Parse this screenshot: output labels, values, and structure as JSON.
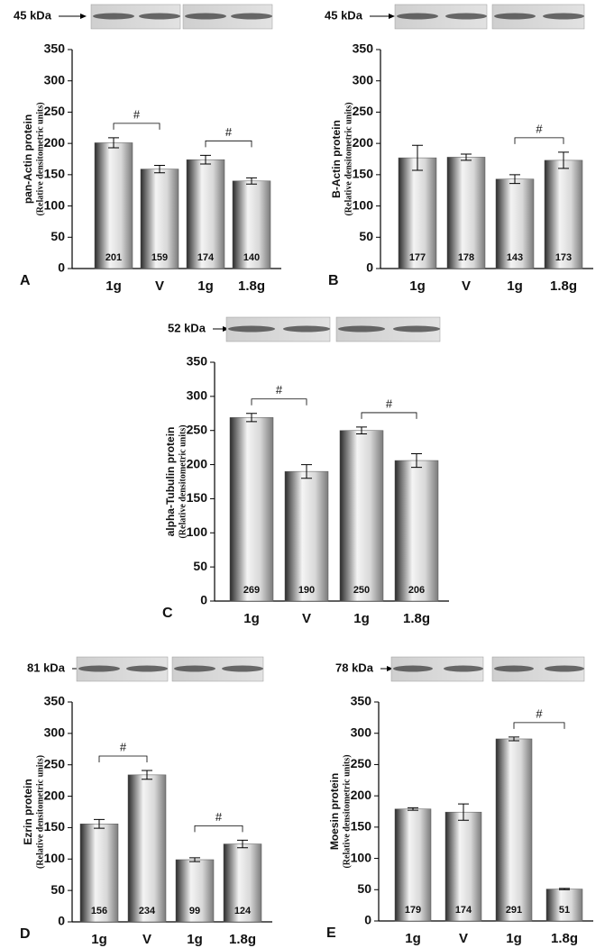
{
  "chart_data": [
    {
      "type": "bar",
      "panel": "A",
      "blot_label": "45 kDa",
      "y_label": "pan-Actin protein",
      "y_sublabel": "(Relative densitometric units)",
      "categories": [
        "1g",
        "V",
        "1g",
        "1.8g"
      ],
      "values": [
        201,
        159,
        174,
        140
      ],
      "errors": [
        8,
        6,
        7,
        5
      ],
      "pair_labels": [
        "#",
        "#"
      ],
      "ylim": [
        0,
        350
      ],
      "yticks": [
        0,
        50,
        100,
        150,
        200,
        250,
        300,
        350
      ]
    },
    {
      "type": "bar",
      "panel": "B",
      "blot_label": "45 kDa",
      "y_label": "B-Actin protein",
      "y_sublabel": "(Relative densitometric units)",
      "categories": [
        "1g",
        "V",
        "1g",
        "1.8g"
      ],
      "values": [
        177,
        178,
        143,
        173
      ],
      "errors": [
        20,
        5,
        7,
        13
      ],
      "pair_labels": [
        null,
        "#"
      ],
      "ylim": [
        0,
        350
      ],
      "yticks": [
        0,
        50,
        100,
        150,
        200,
        250,
        300,
        350
      ]
    },
    {
      "type": "bar",
      "panel": "C",
      "blot_label": "52 kDa",
      "y_label": "alpha-Tubulin protein",
      "y_sublabel": "(Relative densitometric units)",
      "categories": [
        "1g",
        "V",
        "1g",
        "1.8g"
      ],
      "values": [
        269,
        190,
        250,
        206
      ],
      "errors": [
        6,
        10,
        5,
        10
      ],
      "pair_labels": [
        "#",
        "#"
      ],
      "ylim": [
        0,
        350
      ],
      "yticks": [
        0,
        50,
        100,
        150,
        200,
        250,
        300,
        350
      ]
    },
    {
      "type": "bar",
      "panel": "D",
      "blot_label": "81 kDa",
      "y_label": "Ezrin protein",
      "y_sublabel": "(Relative densitometric units)",
      "categories": [
        "1g",
        "V",
        "1g",
        "1.8g"
      ],
      "values": [
        156,
        234,
        99,
        124
      ],
      "errors": [
        7,
        7,
        3,
        6
      ],
      "pair_labels": [
        "#",
        "#"
      ],
      "ylim": [
        0,
        350
      ],
      "yticks": [
        0,
        50,
        100,
        150,
        200,
        250,
        300,
        350
      ]
    },
    {
      "type": "bar",
      "panel": "E",
      "blot_label": "78 kDa",
      "y_label": "Moesin protein",
      "y_sublabel": "(Relative densitometric units)",
      "categories": [
        "1g",
        "V",
        "1g",
        "1.8g"
      ],
      "values": [
        179,
        174,
        291,
        51
      ],
      "errors": [
        2,
        13,
        3,
        1
      ],
      "pair_labels": [
        null,
        "#"
      ],
      "ylim": [
        0,
        350
      ],
      "yticks": [
        0,
        50,
        100,
        150,
        200,
        250,
        300,
        350
      ]
    }
  ]
}
